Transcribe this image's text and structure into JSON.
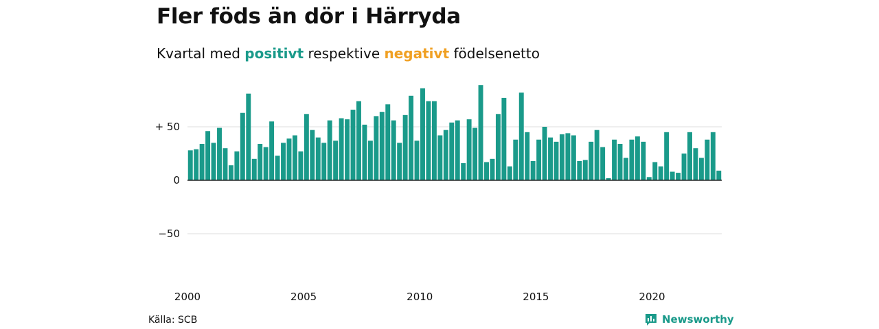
{
  "title": "Fler föds än dör i Härryda",
  "subtitle": {
    "prefix": "Kvartal med",
    "positive": "positivt",
    "middle": "respektive",
    "negative": "negativt",
    "suffix": "födelsenetto"
  },
  "source": "Källa: SCB",
  "brand": "Newsworthy",
  "colors": {
    "positive": "#1a9a8a",
    "negative": "#f0a023",
    "grid": "#dddddd",
    "axis": "#222222"
  },
  "chart_data": {
    "type": "bar",
    "x_start": "2000 Q1",
    "interval": "quarter",
    "ylim": [
      -100,
      100
    ],
    "y_ticks": [
      {
        "value": 50,
        "label": "+ 50"
      },
      {
        "value": 0,
        "label": "0"
      },
      {
        "value": -50,
        "label": "−50"
      }
    ],
    "x_ticks": [
      "2000",
      "2005",
      "2010",
      "2015",
      "2020"
    ],
    "values": [
      28,
      29,
      34,
      46,
      35,
      49,
      30,
      14,
      27,
      63,
      81,
      20,
      34,
      31,
      55,
      23,
      35,
      39,
      42,
      27,
      62,
      47,
      40,
      35,
      56,
      37,
      58,
      57,
      66,
      74,
      52,
      37,
      60,
      64,
      71,
      56,
      35,
      61,
      79,
      37,
      86,
      74,
      74,
      42,
      47,
      54,
      56,
      16,
      57,
      49,
      89,
      17,
      20,
      62,
      77,
      13,
      38,
      82,
      45,
      18,
      38,
      50,
      40,
      36,
      43,
      44,
      42,
      18,
      19,
      36,
      47,
      31,
      2,
      38,
      34,
      21,
      38,
      41,
      36,
      3,
      17,
      13,
      45,
      8,
      7,
      25,
      45,
      30,
      21,
      38,
      45,
      9
    ]
  }
}
